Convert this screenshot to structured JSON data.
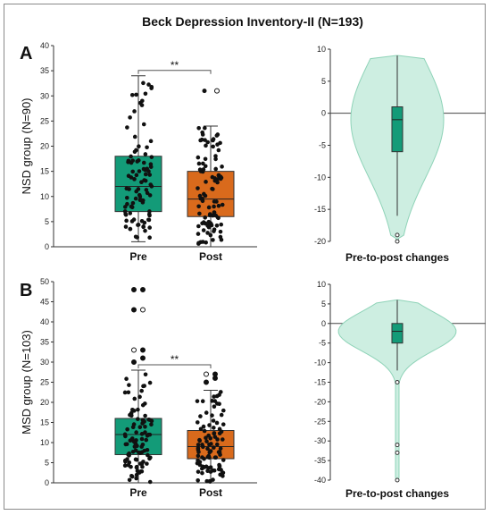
{
  "title": "Beck Depression Inventory-II (N=193)",
  "colors": {
    "pre": "#139b78",
    "post": "#d96a1c",
    "violin_fill": "#cdeee1",
    "violin_line": "#8fd3b8",
    "violin_box": "#139b78"
  },
  "chart_data": [
    {
      "type": "box",
      "panel": "A",
      "ylabel": "NSD group (N=90)",
      "ylim": [
        0,
        40
      ],
      "yticks": [
        0,
        5,
        10,
        15,
        20,
        25,
        30,
        35,
        40
      ],
      "categories": [
        "Pre",
        "Post"
      ],
      "significance": "**",
      "boxes": [
        {
          "name": "Pre",
          "min": 1,
          "q1": 7,
          "median": 12,
          "q3": 18,
          "max": 34,
          "outliers": []
        },
        {
          "name": "Post",
          "min": 0,
          "q1": 6,
          "median": 9.5,
          "q3": 15,
          "max": 24,
          "outliers": [
            31
          ]
        }
      ]
    },
    {
      "type": "violin",
      "panel": "A",
      "xlabel": "Pre-to-post changes",
      "ylim": [
        -20,
        10
      ],
      "yticks": [
        10,
        5,
        0,
        -5,
        -10,
        -15,
        -20
      ],
      "box": {
        "min": -16,
        "q1": -6,
        "median": -1,
        "q3": 1,
        "max": 9,
        "outliers": [
          -19,
          -20
        ]
      }
    },
    {
      "type": "box",
      "panel": "B",
      "ylabel": "MSD group (N=103)",
      "ylim": [
        0,
        50
      ],
      "yticks": [
        0,
        5,
        10,
        15,
        20,
        25,
        30,
        35,
        40,
        45,
        50
      ],
      "categories": [
        "Pre",
        "Post"
      ],
      "significance": "**",
      "boxes": [
        {
          "name": "Pre",
          "min": 0,
          "q1": 7,
          "median": 12,
          "q3": 16,
          "max": 28,
          "outliers": [
            30,
            31,
            33,
            33,
            43,
            43,
            48,
            48
          ]
        },
        {
          "name": "Post",
          "min": 0,
          "q1": 6,
          "median": 9,
          "q3": 13,
          "max": 23,
          "outliers": [
            25,
            26,
            27,
            27
          ]
        }
      ]
    },
    {
      "type": "violin",
      "panel": "B",
      "xlabel": "Pre-to-post changes",
      "ylim": [
        -40,
        10
      ],
      "yticks": [
        10,
        5,
        0,
        -5,
        -10,
        -15,
        -20,
        -25,
        -30,
        -35,
        -40
      ],
      "box": {
        "min": -12,
        "q1": -5,
        "median": -2,
        "q3": 0,
        "max": 6,
        "outliers": [
          -15,
          -31,
          -33,
          -40
        ]
      }
    }
  ]
}
